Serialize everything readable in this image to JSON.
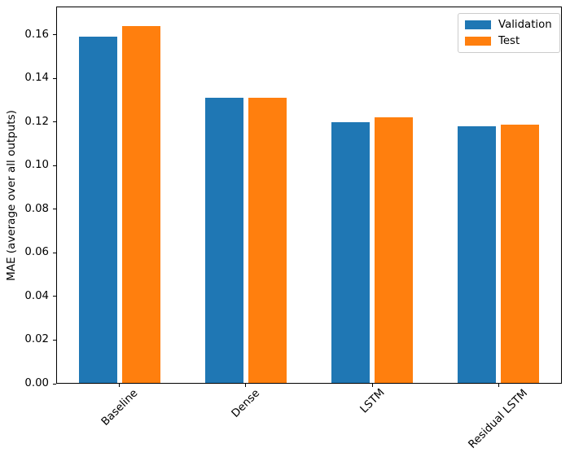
{
  "chart_data": {
    "type": "bar",
    "title": "",
    "categories": [
      "Baseline",
      "Dense",
      "LSTM",
      "Residual LSTM"
    ],
    "series": [
      {
        "name": "Validation",
        "color": "#1f77b4",
        "values": [
          0.159,
          0.131,
          0.12,
          0.118
        ]
      },
      {
        "name": "Test",
        "color": "#ff7f0e",
        "values": [
          0.164,
          0.131,
          0.122,
          0.119
        ]
      }
    ],
    "xlabel": "",
    "ylabel": "MAE (average over all outputs)",
    "ylim": [
      0,
      0.173
    ],
    "yticks": [
      "0.00",
      "0.02",
      "0.04",
      "0.06",
      "0.08",
      "0.10",
      "0.12",
      "0.14",
      "0.16"
    ],
    "xtick_rotation_deg": 45,
    "grid": false,
    "legend_position": "upper right",
    "background_color": "#ffffff",
    "spine_color": "#000000"
  }
}
